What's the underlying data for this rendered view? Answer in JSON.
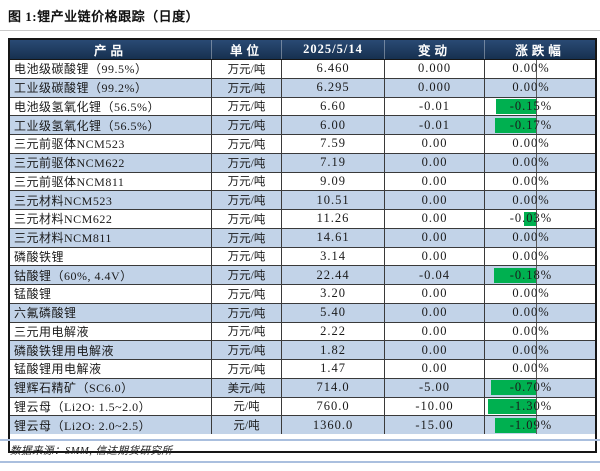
{
  "title": "图 1:锂产业链价格跟踪（日度）",
  "source": "数据来源：SMM, 信达期货研究所",
  "colors": {
    "header_bg": "#1e3a5f",
    "row_alt": "#c2d3e8",
    "bar_green": "#00b050",
    "rule_blue": "#aabfde"
  },
  "table": {
    "headers": {
      "product": "产品",
      "unit": "单位",
      "date": "2025/5/14",
      "change": "变动",
      "pct": "涨跌幅"
    },
    "rows": [
      {
        "product": "电池级碳酸锂（99.5%）",
        "unit": "万元/吨",
        "price": "6.460",
        "change": "0.000",
        "pct": "0.00%",
        "bar": 0
      },
      {
        "product": "工业级碳酸锂（99.2%）",
        "unit": "万元/吨",
        "price": "6.295",
        "change": "0.000",
        "pct": "0.00%",
        "bar": 0
      },
      {
        "product": "电池级氢氧化锂（56.5%）",
        "unit": "万元/吨",
        "price": "6.60",
        "change": "-0.01",
        "pct": "-0.15%",
        "bar": 41
      },
      {
        "product": "工业级氢氧化锂（56.5%）",
        "unit": "万元/吨",
        "price": "6.00",
        "change": "-0.01",
        "pct": "-0.17%",
        "bar": 42
      },
      {
        "product": "三元前驱体NCM523",
        "unit": "万元/吨",
        "price": "7.59",
        "change": "0.00",
        "pct": "0.00%",
        "bar": 0
      },
      {
        "product": "三元前驱体NCM622",
        "unit": "万元/吨",
        "price": "7.19",
        "change": "0.00",
        "pct": "0.00%",
        "bar": 0
      },
      {
        "product": "三元前驱体NCM811",
        "unit": "万元/吨",
        "price": "9.09",
        "change": "0.00",
        "pct": "0.00%",
        "bar": 0
      },
      {
        "product": "三元材料NCM523",
        "unit": "万元/吨",
        "price": "10.51",
        "change": "0.00",
        "pct": "0.00%",
        "bar": 0
      },
      {
        "product": "三元材料NCM622",
        "unit": "万元/吨",
        "price": "11.26",
        "change": "0.00",
        "pct": "-0.03%",
        "bar": 13
      },
      {
        "product": "三元材料NCM811",
        "unit": "万元/吨",
        "price": "14.61",
        "change": "0.00",
        "pct": "0.00%",
        "bar": 0
      },
      {
        "product": "磷酸铁锂",
        "unit": "万元/吨",
        "price": "3.14",
        "change": "0.00",
        "pct": "0.00%",
        "bar": 0
      },
      {
        "product": "钴酸锂（60%, 4.4V）",
        "unit": "万元/吨",
        "price": "22.44",
        "change": "-0.04",
        "pct": "-0.18%",
        "bar": 43
      },
      {
        "product": "锰酸锂",
        "unit": "万元/吨",
        "price": "3.20",
        "change": "0.00",
        "pct": "0.00%",
        "bar": 0
      },
      {
        "product": "六氟磷酸锂",
        "unit": "万元/吨",
        "price": "5.40",
        "change": "0.00",
        "pct": "0.00%",
        "bar": 0
      },
      {
        "product": "三元用电解液",
        "unit": "万元/吨",
        "price": "2.22",
        "change": "0.00",
        "pct": "0.00%",
        "bar": 0
      },
      {
        "product": "磷酸铁锂用电解液",
        "unit": "万元/吨",
        "price": "1.82",
        "change": "0.00",
        "pct": "0.00%",
        "bar": 0
      },
      {
        "product": "锰酸锂用电解液",
        "unit": "万元/吨",
        "price": "1.47",
        "change": "0.00",
        "pct": "0.00%",
        "bar": 0
      },
      {
        "product": "锂辉石精矿（SC6.0）",
        "unit": "美元/吨",
        "price": "714.0",
        "change": "-5.00",
        "pct": "-0.70%",
        "bar": 46
      },
      {
        "product": "锂云母（Li2O: 1.5~2.0）",
        "unit": "元/吨",
        "price": "760.0",
        "change": "-10.00",
        "pct": "-1.30%",
        "bar": 49
      },
      {
        "product": "锂云母（Li2O: 2.0~2.5）",
        "unit": "元/吨",
        "price": "1360.0",
        "change": "-15.00",
        "pct": "-1.09%",
        "bar": 42
      }
    ]
  }
}
